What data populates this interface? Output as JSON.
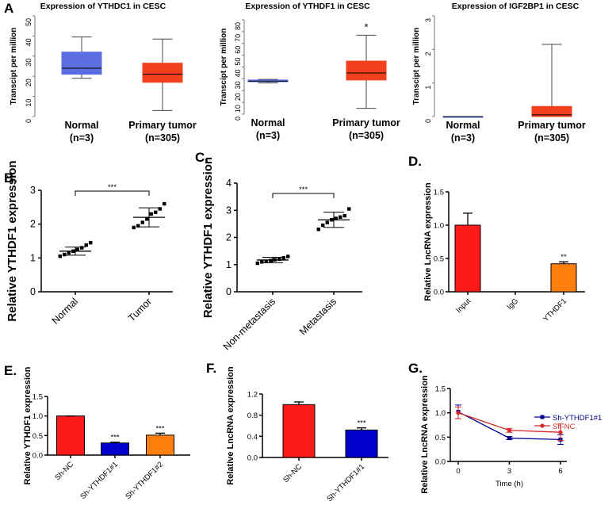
{
  "panels": {
    "A": "A",
    "B": "B.",
    "C": "C.",
    "D": "D.",
    "E": "E.",
    "F": "F.",
    "G": "G."
  },
  "chart_data": [
    {
      "id": "A1",
      "type": "box",
      "title": "Expression of YTHDC1 in CESC",
      "ylabel": "Transcipt per million",
      "ylim": [
        0,
        50
      ],
      "yticks": [
        0,
        10,
        20,
        30,
        40,
        50
      ],
      "categories": [
        "Normal",
        "Primary tumor"
      ],
      "category_n": [
        "(n=3)",
        "(n=305)"
      ],
      "boxes": [
        {
          "whisker_low": 19,
          "q1": 21,
          "median": 24,
          "q3": 32,
          "whisker_high": 39.5,
          "color": "#5b6ee1"
        },
        {
          "whisker_low": 3,
          "q1": 17,
          "median": 21,
          "q3": 26.5,
          "whisker_high": 38.5,
          "color": "#f2401f"
        }
      ]
    },
    {
      "id": "A2",
      "type": "box",
      "title": "Expression of YTHDF1 in CESC",
      "ylabel": "Transcipt per million",
      "ylim": [
        0,
        80
      ],
      "yticks": [
        0,
        10,
        20,
        30,
        40,
        50,
        60,
        70,
        80
      ],
      "categories": [
        "Normal",
        "Primary tumor"
      ],
      "category_n": [
        "(n=3)",
        "(n=305)"
      ],
      "boxes": [
        {
          "whisker_low": 26.5,
          "q1": 27.5,
          "median": 28,
          "q3": 29,
          "whisker_high": 29.5,
          "color": "#5b6ee1"
        },
        {
          "whisker_low": 5,
          "q1": 29,
          "median": 35,
          "q3": 45,
          "whisker_high": 67,
          "color": "#f2401f"
        }
      ],
      "annotation": "*"
    },
    {
      "id": "A3",
      "type": "box",
      "title": "Expression of IGF2BP1 in CESC",
      "ylabel": "Transcipt per million",
      "ylim": [
        0,
        3
      ],
      "yticks": [
        0,
        1,
        2,
        3
      ],
      "categories": [
        "Normal",
        "Primary tumor"
      ],
      "category_n": [
        "(n=3)",
        "(n=305)"
      ],
      "boxes": [
        {
          "whisker_low": 0,
          "q1": 0,
          "median": 0,
          "q3": 0,
          "whisker_high": 0,
          "color": "#5b6ee1"
        },
        {
          "whisker_low": 0,
          "q1": 0,
          "median": 0.05,
          "q3": 0.3,
          "whisker_high": 2.15,
          "color": "#f2401f"
        }
      ]
    },
    {
      "id": "B",
      "type": "scatter",
      "ylabel": "Relative YTHDF1 expression",
      "ylim": [
        0,
        3
      ],
      "yticks": [
        0,
        1,
        2,
        3
      ],
      "categories": [
        "Normal",
        "Tumor"
      ],
      "groups": [
        {
          "points": [
            1.05,
            1.1,
            1.15,
            1.2,
            1.25,
            1.3,
            1.38,
            1.45
          ],
          "mean": 1.2,
          "sd": 0.12
        },
        {
          "points": [
            1.9,
            1.95,
            2.05,
            2.15,
            2.3,
            2.35,
            2.45,
            2.6
          ],
          "mean": 2.2,
          "sd": 0.28
        }
      ],
      "significance": "***"
    },
    {
      "id": "C",
      "type": "scatter",
      "ylabel": "Relative YTHDF1 expression",
      "ylim": [
        0,
        4
      ],
      "yticks": [
        0,
        1,
        2,
        3,
        4
      ],
      "categories": [
        "Non-metastasis",
        "Metastasis"
      ],
      "groups": [
        {
          "points": [
            1.05,
            1.1,
            1.12,
            1.15,
            1.18,
            1.2,
            1.25,
            1.3
          ],
          "mean": 1.17,
          "sd": 0.1
        },
        {
          "points": [
            2.3,
            2.45,
            2.55,
            2.65,
            2.7,
            2.75,
            2.8,
            3.05
          ],
          "mean": 2.65,
          "sd": 0.28
        }
      ],
      "significance": "***"
    },
    {
      "id": "D",
      "type": "bar",
      "ylabel": "Relative LncRNA expression",
      "ylim": [
        0,
        1.5
      ],
      "yticks": [
        "0.0",
        "0.5",
        "1.0",
        "1.5"
      ],
      "categories": [
        "Input",
        "IgG",
        "YTHDF1"
      ],
      "values": [
        1.0,
        0.0,
        0.42
      ],
      "errors": [
        0.18,
        0,
        0.03
      ],
      "colors": [
        "#ff1a1a",
        "#c00000",
        "#ff7f0e"
      ],
      "annotations": [
        "",
        "",
        "**"
      ]
    },
    {
      "id": "E",
      "type": "bar",
      "ylabel": "Relative YTHDF1 expression",
      "ylim": [
        0,
        1.5
      ],
      "yticks": [
        "0.0",
        "0.5",
        "1.0",
        "1.5"
      ],
      "categories": [
        "Sh-NC",
        "Sh-YTHDF1#1",
        "Sh-YTHDF1#2"
      ],
      "values": [
        1.0,
        0.31,
        0.51
      ],
      "errors": [
        0.0,
        0.02,
        0.05
      ],
      "colors": [
        "#ff1a1a",
        "#0000cc",
        "#ff7f0e"
      ],
      "annotations": [
        "",
        "***",
        "***"
      ]
    },
    {
      "id": "F",
      "type": "bar",
      "ylabel": "Relative LncRNA expression",
      "ylim": [
        0,
        1.2
      ],
      "yticks": [
        "0.0",
        "0.4",
        "0.8",
        "1.2"
      ],
      "categories": [
        "Sh-NC",
        "Sh-YTHDF1#1"
      ],
      "values": [
        1.0,
        0.52
      ],
      "errors": [
        0.05,
        0.04
      ],
      "colors": [
        "#ff1a1a",
        "#0000cc"
      ],
      "annotations": [
        "",
        "***"
      ]
    },
    {
      "id": "G",
      "type": "line",
      "ylabel": "Relative LncRNA expression",
      "xlabel": "Time (h)",
      "x": [
        0,
        3,
        6
      ],
      "xticks": [
        "0",
        "3",
        "6"
      ],
      "ylim": [
        0,
        1.5
      ],
      "yticks": [
        "0.0",
        "0.5",
        "1.0",
        "1.5"
      ],
      "legend": "top-right",
      "series": [
        {
          "name": "Sh-YTHDF1#1",
          "values": [
            1.02,
            0.48,
            0.45
          ],
          "errors": [
            0.14,
            0.03,
            0.1
          ],
          "color": "#00008b"
        },
        {
          "name": "Sh-NC",
          "values": [
            1.0,
            0.64,
            0.6
          ],
          "errors": [
            0.12,
            0.04,
            0.17
          ],
          "color": "#d62728"
        }
      ]
    }
  ]
}
